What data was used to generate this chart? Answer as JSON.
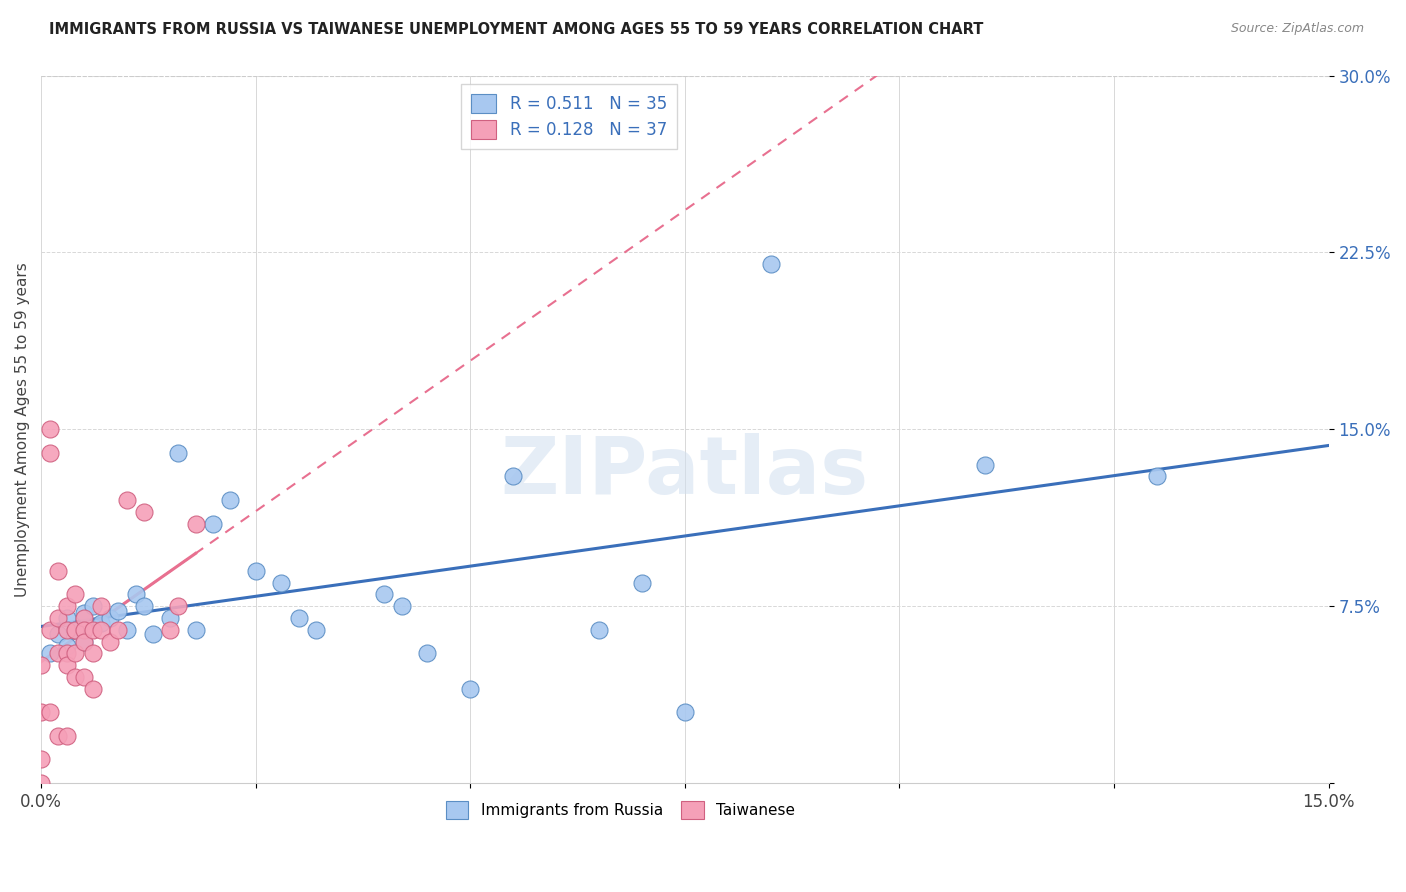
{
  "title": "IMMIGRANTS FROM RUSSIA VS TAIWANESE UNEMPLOYMENT AMONG AGES 55 TO 59 YEARS CORRELATION CHART",
  "source": "Source: ZipAtlas.com",
  "ylabel": "Unemployment Among Ages 55 to 59 years",
  "r_russia": 0.511,
  "n_russia": 35,
  "r_taiwanese": 0.128,
  "n_taiwanese": 37,
  "xlim": [
    0.0,
    0.15
  ],
  "ylim": [
    0.0,
    0.3
  ],
  "yticks": [
    0.0,
    0.075,
    0.15,
    0.225,
    0.3
  ],
  "ytick_labels": [
    "",
    "7.5%",
    "15.0%",
    "22.5%",
    "30.0%"
  ],
  "xticks": [
    0.0,
    0.025,
    0.05,
    0.075,
    0.1,
    0.125,
    0.15
  ],
  "xtick_labels": [
    "0.0%",
    "",
    "",
    "",
    "",
    "",
    "15.0%"
  ],
  "color_russia": "#a8c8f0",
  "color_taiwanese": "#f5a0b8",
  "edge_color_russia": "#5b8ec4",
  "edge_color_taiwanese": "#d06080",
  "line_color_russia": "#3a6fba",
  "line_color_taiwanese": "#e87090",
  "watermark_text": "ZIPatlas",
  "russia_x": [
    0.001,
    0.002,
    0.003,
    0.003,
    0.004,
    0.005,
    0.005,
    0.006,
    0.007,
    0.008,
    0.009,
    0.01,
    0.011,
    0.012,
    0.013,
    0.015,
    0.016,
    0.018,
    0.02,
    0.022,
    0.025,
    0.028,
    0.03,
    0.032,
    0.04,
    0.042,
    0.045,
    0.05,
    0.055,
    0.065,
    0.07,
    0.075,
    0.085,
    0.11,
    0.13
  ],
  "russia_y": [
    0.055,
    0.063,
    0.058,
    0.07,
    0.065,
    0.072,
    0.06,
    0.075,
    0.068,
    0.07,
    0.073,
    0.065,
    0.08,
    0.075,
    0.063,
    0.07,
    0.14,
    0.065,
    0.11,
    0.12,
    0.09,
    0.085,
    0.07,
    0.065,
    0.08,
    0.075,
    0.055,
    0.04,
    0.13,
    0.065,
    0.085,
    0.03,
    0.22,
    0.135,
    0.13
  ],
  "taiwanese_x": [
    0.0,
    0.0,
    0.0,
    0.0,
    0.001,
    0.001,
    0.001,
    0.001,
    0.002,
    0.002,
    0.002,
    0.002,
    0.003,
    0.003,
    0.003,
    0.003,
    0.003,
    0.004,
    0.004,
    0.004,
    0.004,
    0.005,
    0.005,
    0.005,
    0.005,
    0.006,
    0.006,
    0.006,
    0.007,
    0.007,
    0.008,
    0.009,
    0.01,
    0.012,
    0.015,
    0.016,
    0.018
  ],
  "taiwanese_y": [
    0.05,
    0.03,
    0.01,
    0.0,
    0.15,
    0.14,
    0.065,
    0.03,
    0.09,
    0.07,
    0.055,
    0.02,
    0.075,
    0.065,
    0.055,
    0.05,
    0.02,
    0.08,
    0.065,
    0.055,
    0.045,
    0.07,
    0.065,
    0.06,
    0.045,
    0.065,
    0.055,
    0.04,
    0.075,
    0.065,
    0.06,
    0.065,
    0.12,
    0.115,
    0.065,
    0.075,
    0.11
  ]
}
